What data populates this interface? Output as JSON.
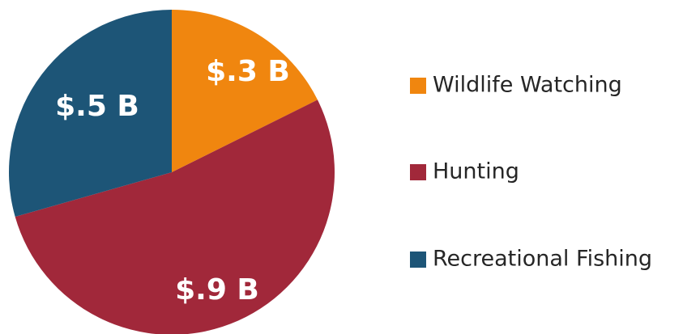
{
  "chart_data": {
    "type": "pie",
    "title": "",
    "slices": [
      {
        "name": "Wildlife Watching",
        "value": 0.3,
        "label": "$.3 B",
        "color": "#F0860F"
      },
      {
        "name": "Hunting",
        "value": 0.9,
        "label": "$.9 B",
        "color": "#A1283A"
      },
      {
        "name": "Recreational Fishing",
        "value": 0.5,
        "label": "$.5 B",
        "color": "#1D5577"
      }
    ],
    "start_angle_deg": 0,
    "direction": "clockwise",
    "legend_position": "right"
  }
}
